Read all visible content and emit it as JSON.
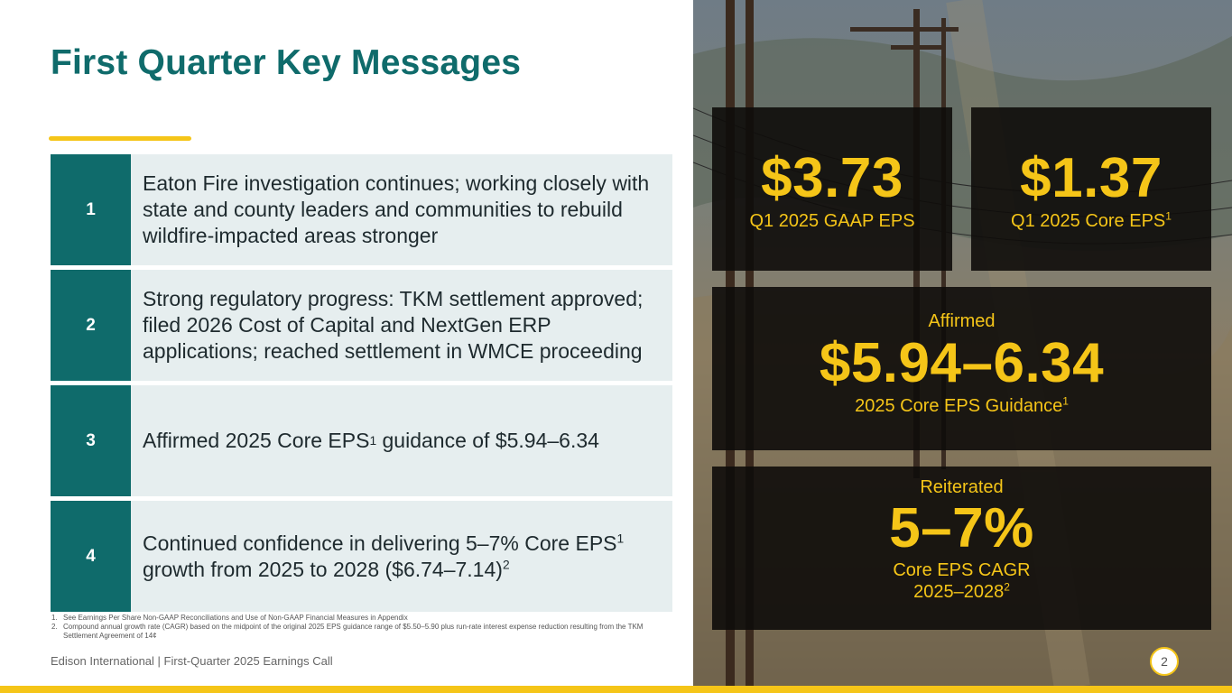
{
  "title": "First Quarter Key Messages",
  "messages": [
    {
      "number": "1",
      "text": "Eaton Fire investigation continues; working closely with state and county leaders and communities to rebuild wildfire-impacted areas stronger"
    },
    {
      "number": "2",
      "text": "Strong regulatory progress: TKM settlement approved; filed 2026 Cost of Capital and NextGen ERP applications; reached settlement in WMCE proceeding"
    },
    {
      "number": "3",
      "text_before": "Affirmed 2025 Core EPS",
      "sup": "1",
      "text_after": " guidance of $5.94–6.34"
    },
    {
      "number": "4",
      "text_part1": "Continued confidence in delivering 5–7% Core EPS",
      "sup1": "1",
      "text_part2": " growth from 2025 to 2028 ($6.74–7.14)",
      "sup2": "2"
    }
  ],
  "footnotes": [
    {
      "n": "1.",
      "text": "See Earnings Per Share Non-GAAP Reconciliations and Use of Non-GAAP Financial Measures in Appendix"
    },
    {
      "n": "2.",
      "text": "Compound annual growth rate (CAGR) based on the midpoint of the original 2025 EPS guidance range of $5.50–5.90 plus run-rate interest expense reduction resulting from the TKM Settlement Agreement of 14¢"
    }
  ],
  "footer": "Edison International | First-Quarter 2025 Earnings Call",
  "page_number": "2",
  "panels": {
    "gaap": {
      "value": "$3.73",
      "label": "Q1 2025 GAAP EPS"
    },
    "core": {
      "value": "$1.37",
      "label": "Q1 2025 Core EPS",
      "sup": "1"
    },
    "guidance": {
      "status": "Affirmed",
      "value": "$5.94–6.34",
      "label": "2025 Core EPS Guidance",
      "sup": "1"
    },
    "growth": {
      "status": "Reiterated",
      "value": "5–7%",
      "label_line1": "Core EPS CAGR",
      "label_line2": "2025–2028",
      "sup": "2"
    }
  },
  "colors": {
    "teal": "#0f6b6b",
    "gold": "#f5c518",
    "row_bg": "#e6eeef"
  }
}
